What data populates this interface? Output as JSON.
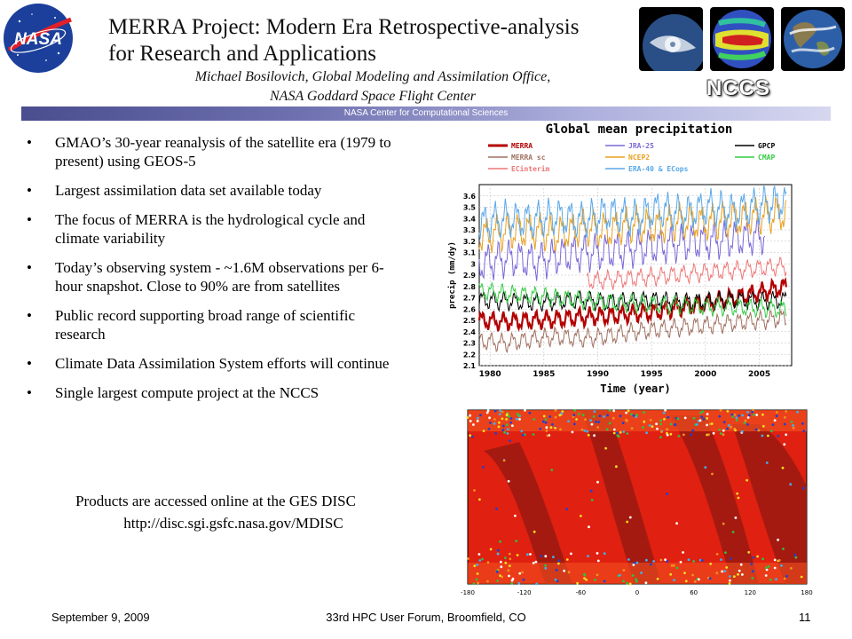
{
  "header": {
    "title": "MERRA Project:  Modern Era Retrospective-analysis for Research and Applications",
    "author_line1": "Michael Bosilovich, Global Modeling and Assimilation Office,",
    "author_line2": "NASA Goddard Space Flight Center",
    "nasa_logo": "NASA",
    "nccs_logo": "NCCS",
    "banner": "NASA Center for Computational Sciences"
  },
  "bullets": [
    "GMAO’s 30-year reanalysis of the satellite era (1979 to present) using GEOS-5",
    "Largest assimilation data set available today",
    "The focus of MERRA is the hydrological cycle and climate variability",
    "Today’s observing system - ~1.6M observations per 6-hour snapshot. Close to 90% are from satellites",
    "Public record supporting broad range of scientific research",
    "Climate Data Assimilation System efforts will continue",
    "Single largest compute project at the NCCS"
  ],
  "bullet_glyph": "•",
  "products": {
    "line1": "Products are accessed online at the GES DISC",
    "line2": "http://disc.sgi.gsfc.nasa.gov/MDISC"
  },
  "chart_data": {
    "type": "line",
    "title": "Global mean precipitation",
    "xlabel": "Time (year)",
    "ylabel": "precip (mm/dy)",
    "xlim": [
      1979,
      2008
    ],
    "ylim": [
      2.1,
      3.7
    ],
    "x_ticks": [
      "1980",
      "1985",
      "1990",
      "1995",
      "2000",
      "2005"
    ],
    "y_ticks": [
      "2.1",
      "2.2",
      "2.3",
      "2.4",
      "2.5",
      "2.6",
      "2.7",
      "2.8",
      "2.9",
      "3",
      "3.1",
      "3.2",
      "3.3",
      "3.4",
      "3.5",
      "3.6"
    ],
    "grid": true,
    "legend": "top",
    "series": [
      {
        "name": "MERRA",
        "color": "#b30000",
        "range": [
          1979,
          2007.5
        ],
        "values": [
          2.5,
          2.49,
          2.5,
          2.51,
          2.53,
          2.54,
          2.56,
          2.58,
          2.62,
          2.66,
          2.7,
          2.75,
          2.8
        ]
      },
      {
        "name": "MERRA sc",
        "color": "#a07060",
        "range": [
          1979,
          2007.5
        ],
        "values": [
          2.32,
          2.3,
          2.33,
          2.36,
          2.34,
          2.36,
          2.4,
          2.42,
          2.44,
          2.46,
          2.48,
          2.5,
          2.52
        ]
      },
      {
        "name": "ECinterim",
        "color": "#ee7777",
        "range": [
          1989,
          2007.5
        ],
        "values": [
          2.85,
          2.86,
          2.88,
          2.9,
          2.92,
          2.94,
          2.96,
          2.98
        ]
      },
      {
        "name": "JRA-25",
        "color": "#7b68d8",
        "range": [
          1979,
          2005.5
        ],
        "values": [
          3.0,
          3.05,
          3.02,
          3.08,
          3.1,
          3.12,
          3.15,
          3.18,
          3.2,
          3.22,
          3.25
        ]
      },
      {
        "name": "NCEP2",
        "color": "#e8a020",
        "range": [
          1979,
          2007.5
        ],
        "values": [
          3.25,
          3.28,
          3.3,
          3.26,
          3.32,
          3.3,
          3.35,
          3.33,
          3.38,
          3.36,
          3.4,
          3.42,
          3.45
        ]
      },
      {
        "name": "ERA-40 & ECops",
        "color": "#5aa8e8",
        "range": [
          1979,
          2007.5
        ],
        "values": [
          3.35,
          3.4,
          3.38,
          3.42,
          3.38,
          3.45,
          3.4,
          3.48,
          3.44,
          3.5,
          3.46,
          3.52,
          3.55
        ]
      },
      {
        "name": "GPCP",
        "color": "#000000",
        "range": [
          1979,
          2007.5
        ],
        "values": [
          2.68,
          2.67,
          2.66,
          2.67,
          2.68,
          2.66,
          2.67,
          2.68,
          2.66,
          2.67,
          2.68,
          2.67,
          2.68
        ]
      },
      {
        "name": "CMAP",
        "color": "#33cc44",
        "range": [
          1979,
          2007.5
        ],
        "values": [
          2.76,
          2.74,
          2.72,
          2.7,
          2.68,
          2.66,
          2.65,
          2.64,
          2.63,
          2.62,
          2.62,
          2.61,
          2.6
        ]
      }
    ]
  },
  "map": {
    "x_ticks": [
      "-180",
      "-120",
      "-60",
      "0",
      "60",
      "120",
      "180"
    ],
    "y_ticks": [
      "60",
      "30",
      "0",
      "-30",
      "-60"
    ]
  },
  "footer": {
    "date": "September 9, 2009",
    "event": "33rd HPC User Forum, Broomfield, CO",
    "page": "11"
  }
}
